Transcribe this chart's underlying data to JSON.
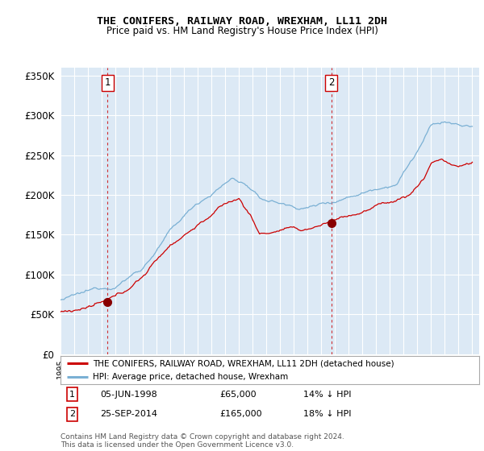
{
  "title": "THE CONIFERS, RAILWAY ROAD, WREXHAM, LL11 2DH",
  "subtitle": "Price paid vs. HM Land Registry's House Price Index (HPI)",
  "ytick_values": [
    0,
    50000,
    100000,
    150000,
    200000,
    250000,
    300000,
    350000
  ],
  "ylim": [
    0,
    360000
  ],
  "xlim_start": 1995.0,
  "xlim_end": 2025.5,
  "sale1_date": 1998.43,
  "sale1_price": 65000,
  "sale2_date": 2014.73,
  "sale2_price": 165000,
  "vline1_x": 1998.43,
  "vline2_x": 2014.73,
  "line_color_property": "#cc0000",
  "line_color_hpi": "#7ab0d4",
  "legend_label_property": "THE CONIFERS, RAILWAY ROAD, WREXHAM, LL11 2DH (detached house)",
  "legend_label_hpi": "HPI: Average price, detached house, Wrexham",
  "background_color": "#ffffff",
  "plot_bg_color": "#dce9f5"
}
